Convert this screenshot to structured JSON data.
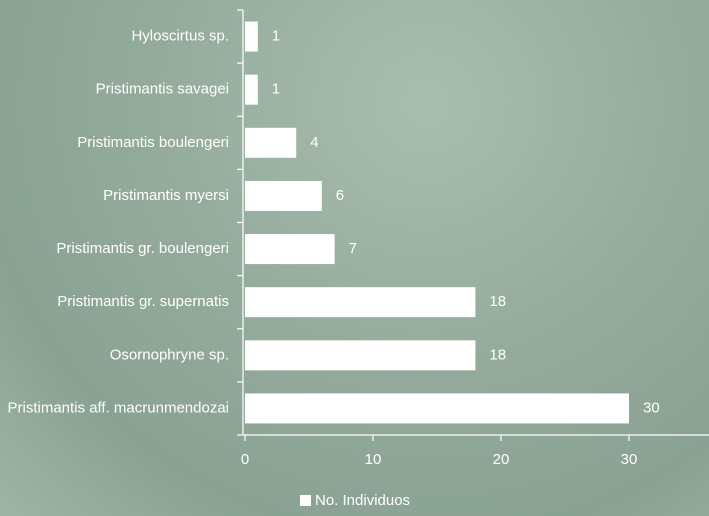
{
  "chart_data": {
    "type": "bar",
    "orientation": "horizontal",
    "categories": [
      "Hyloscirtus sp.",
      "Pristimantis savagei",
      "Pristimantis boulengeri",
      "Pristimantis myersi",
      "Pristimantis gr. boulengeri",
      "Pristimantis gr. supernatis",
      "Osornophryne sp.",
      "Pristimantis aff. macrunmendozai"
    ],
    "series": [
      {
        "name": "No. Individuos",
        "color": "#ffffff",
        "values": [
          1,
          1,
          4,
          6,
          7,
          18,
          18,
          30
        ]
      }
    ],
    "xlim": [
      0,
      36.25
    ],
    "xticks": [
      0,
      10,
      20,
      30
    ],
    "legend": "bottom"
  }
}
